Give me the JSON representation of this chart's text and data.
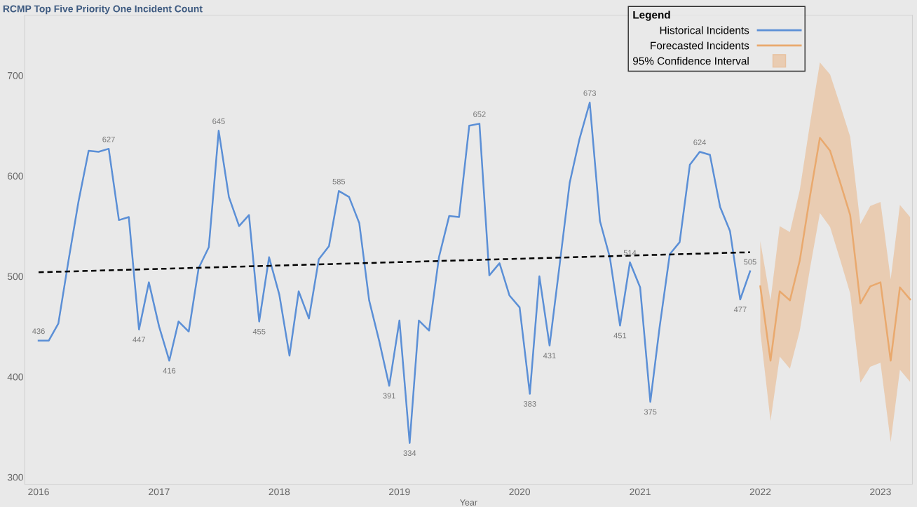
{
  "chart_data": {
    "type": "line",
    "title": "RCMP Top Five Priority One Incident Count",
    "xlabel": "Year",
    "xlim": [
      "2015-11-20",
      "2023-04-08"
    ],
    "xticks": [
      {
        "value": "2016-01-01",
        "label": "2016"
      },
      {
        "value": "2017-01-01",
        "label": "2017"
      },
      {
        "value": "2018-01-01",
        "label": "2018"
      },
      {
        "value": "2019-01-01",
        "label": "2019"
      },
      {
        "value": "2020-01-01",
        "label": "2020"
      },
      {
        "value": "2021-01-01",
        "label": "2021"
      },
      {
        "value": "2022-01-01",
        "label": "2022"
      },
      {
        "value": "2023-01-01",
        "label": "2023"
      }
    ],
    "ylim": [
      293,
      760
    ],
    "yticks": [
      300,
      400,
      500,
      600,
      700
    ],
    "grid": false,
    "legend": "top right",
    "legend_title": "Legend",
    "annotations": [
      "95% Confidence Interval"
    ],
    "series": [
      {
        "name": "Historical Incidents",
        "color": "#5b8fd6",
        "x": [
          "2016-01",
          "2016-02",
          "2016-03",
          "2016-04",
          "2016-05",
          "2016-06",
          "2016-07",
          "2016-08",
          "2016-09",
          "2016-10",
          "2016-11",
          "2016-12",
          "2017-01",
          "2017-02",
          "2017-03",
          "2017-04",
          "2017-05",
          "2017-06",
          "2017-07",
          "2017-08",
          "2017-09",
          "2017-10",
          "2017-11",
          "2017-12",
          "2018-01",
          "2018-02",
          "2018-03",
          "2018-04",
          "2018-05",
          "2018-06",
          "2018-07",
          "2018-08",
          "2018-09",
          "2018-10",
          "2018-11",
          "2018-12",
          "2019-01",
          "2019-02",
          "2019-03",
          "2019-04",
          "2019-05",
          "2019-06",
          "2019-07",
          "2019-08",
          "2019-09",
          "2019-10",
          "2019-11",
          "2019-12",
          "2020-01",
          "2020-02",
          "2020-03",
          "2020-04",
          "2020-05",
          "2020-06",
          "2020-07",
          "2020-08",
          "2020-09",
          "2020-10",
          "2020-11",
          "2020-12",
          "2021-01",
          "2021-02",
          "2021-03",
          "2021-04",
          "2021-05",
          "2021-06",
          "2021-07",
          "2021-08",
          "2021-09",
          "2021-10",
          "2021-11",
          "2021-12"
        ],
        "values": [
          436,
          436,
          453,
          516,
          574,
          625,
          624,
          627,
          556,
          559,
          447,
          494,
          450,
          416,
          455,
          445,
          508,
          529,
          645,
          579,
          550,
          561,
          455,
          519,
          482,
          421,
          485,
          458,
          517,
          530,
          585,
          579,
          553,
          476,
          435,
          391,
          456,
          334,
          456,
          446,
          519,
          560,
          559,
          650,
          652,
          501,
          513,
          481,
          469,
          383,
          500,
          431,
          510,
          593,
          637,
          673,
          555,
          519,
          451,
          514,
          489,
          375,
          449,
          522,
          534,
          611,
          624,
          621,
          569,
          545,
          477,
          505
        ],
        "value_labels": [
          "436",
          null,
          null,
          null,
          null,
          null,
          null,
          "627",
          null,
          null,
          "447",
          null,
          null,
          "416",
          null,
          null,
          null,
          null,
          "645",
          null,
          null,
          null,
          "455",
          null,
          null,
          null,
          null,
          null,
          null,
          null,
          "585",
          null,
          null,
          null,
          null,
          "391",
          null,
          "334",
          null,
          null,
          null,
          null,
          null,
          null,
          "652",
          null,
          null,
          null,
          null,
          "383",
          null,
          "431",
          null,
          null,
          null,
          "673",
          null,
          null,
          "451",
          "514",
          null,
          "375",
          null,
          null,
          null,
          null,
          "624",
          null,
          null,
          null,
          "477",
          "505"
        ]
      },
      {
        "name": "Forecasted Incidents",
        "color": "#e9a96e",
        "x": [
          "2022-01",
          "2022-02",
          "2022-03",
          "2022-04",
          "2022-05",
          "2022-06",
          "2022-07",
          "2022-08",
          "2022-09",
          "2022-10",
          "2022-11",
          "2022-12",
          "2023-01",
          "2023-02",
          "2023-03",
          "2023-04"
        ],
        "values": [
          490,
          416,
          485,
          476,
          516,
          580,
          638,
          625,
          593,
          561,
          473,
          490,
          494,
          416,
          489,
          477
        ],
        "lower": [
          445,
          356,
          420,
          408,
          446,
          508,
          563,
          549,
          516,
          483,
          394,
          410,
          414,
          335,
          407,
          395
        ],
        "upper": [
          535,
          476,
          550,
          544,
          586,
          652,
          713,
          701,
          670,
          639,
          552,
          570,
          574,
          497,
          571,
          559
        ]
      },
      {
        "color": "#000000",
        "line_style": "dashed",
        "x": [
          "2016-01",
          "2021-12"
        ],
        "values": [
          504,
          524
        ]
      }
    ]
  }
}
